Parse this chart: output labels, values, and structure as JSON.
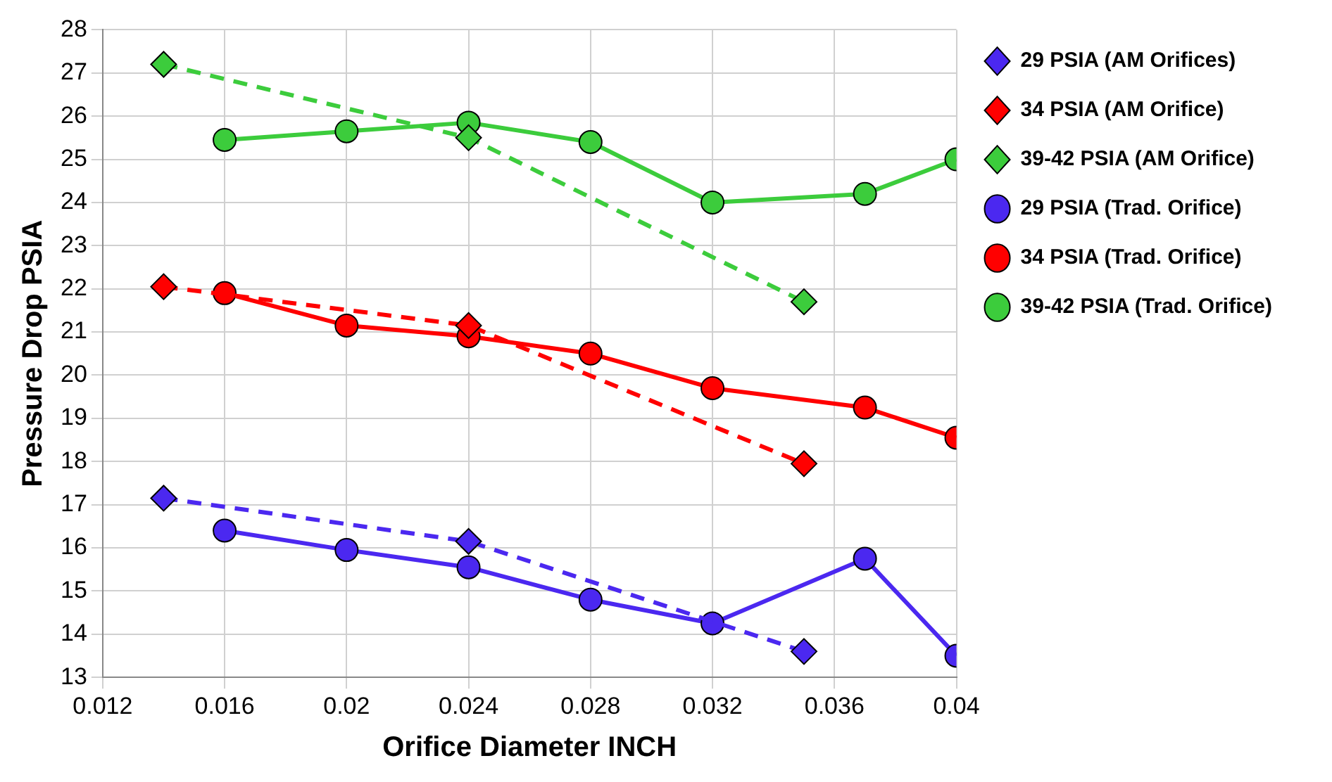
{
  "chart_data": {
    "type": "line",
    "xlabel": "Orifice Diameter INCH",
    "ylabel": "Pressure Drop PSIA",
    "xlim": [
      0.012,
      0.04
    ],
    "xticks": [
      0.012,
      0.016,
      0.02,
      0.024,
      0.028,
      0.032,
      0.036,
      0.04
    ],
    "ylim": [
      13,
      28
    ],
    "yticks": [
      13,
      14,
      15,
      16,
      17,
      18,
      19,
      20,
      21,
      22,
      23,
      24,
      25,
      26,
      27,
      28
    ],
    "grid": true,
    "legend": "right",
    "series": [
      {
        "name": "29 PSIA (AM Orifices)",
        "color": "#4b28f0",
        "marker": "diamond",
        "line_style": "dashed",
        "x": [
          0.014,
          0.024,
          0.035
        ],
        "values": [
          17.15,
          16.15,
          13.6
        ]
      },
      {
        "name": "34 PSIA (AM Orifice)",
        "color": "#ff0000",
        "marker": "diamond",
        "line_style": "dashed",
        "x": [
          0.014,
          0.024,
          0.035
        ],
        "values": [
          22.05,
          21.15,
          17.95
        ]
      },
      {
        "name": "39-42 PSIA (AM Orifice)",
        "color": "#3ccc3c",
        "marker": "diamond",
        "line_style": "dashed",
        "x": [
          0.014,
          0.024,
          0.035
        ],
        "values": [
          27.2,
          25.5,
          21.7
        ]
      },
      {
        "name": "29 PSIA (Trad. Orifice)",
        "color": "#4b28f0",
        "marker": "circle",
        "line_style": "solid",
        "x": [
          0.016,
          0.02,
          0.024,
          0.028,
          0.032,
          0.037,
          0.04
        ],
        "values": [
          16.4,
          15.95,
          15.55,
          14.8,
          14.25,
          15.75,
          13.5
        ]
      },
      {
        "name": "34 PSIA (Trad. Orifice)",
        "color": "#ff0000",
        "marker": "circle",
        "line_style": "solid",
        "x": [
          0.016,
          0.02,
          0.024,
          0.028,
          0.032,
          0.037,
          0.04
        ],
        "values": [
          21.9,
          21.15,
          20.9,
          20.5,
          19.7,
          19.25,
          18.55
        ]
      },
      {
        "name": "39-42 PSIA (Trad. Orifice)",
        "color": "#3ccc3c",
        "marker": "circle",
        "line_style": "solid",
        "x": [
          0.016,
          0.02,
          0.024,
          0.028,
          0.032,
          0.037,
          0.04
        ],
        "values": [
          25.45,
          25.65,
          25.85,
          25.4,
          24.0,
          24.2,
          25.0
        ]
      }
    ]
  }
}
